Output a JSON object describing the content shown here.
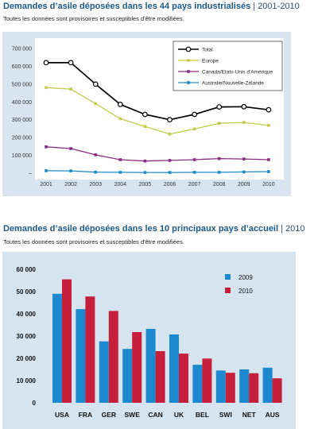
{
  "chart_data": [
    {
      "type": "line",
      "title": "Demandes d’asile déposées dans les 44 pays industrialisés",
      "title_suffix": "| 2001-2010",
      "note": "Toutes les données sont provisoires et susceptibles d'être modifiées.",
      "x": [
        "2001",
        "2002",
        "2003",
        "2004",
        "2005",
        "2006",
        "2007",
        "2008",
        "2009",
        "2010"
      ],
      "series": [
        {
          "name": "Total",
          "color": "#000000",
          "marker": "circle",
          "values": [
            620000,
            620000,
            500000,
            386000,
            330000,
            300000,
            330000,
            372000,
            373000,
            356000
          ]
        },
        {
          "name": "Europe",
          "color": "#c2cc4c",
          "marker": "square",
          "values": [
            480000,
            472000,
            390000,
            306000,
            262000,
            220000,
            248000,
            280000,
            285000,
            268000
          ]
        },
        {
          "name": "Canada/Etats-Unis d'Amérique",
          "color": "#8a2c84",
          "marker": "square",
          "values": [
            148000,
            138000,
            103000,
            76000,
            68000,
            72000,
            76000,
            82000,
            80000,
            76000
          ]
        },
        {
          "name": "Australie/Nouvelle-Zélande",
          "color": "#1d8ac6",
          "marker": "square",
          "values": [
            14000,
            13000,
            6000,
            5000,
            4000,
            4000,
            5000,
            5000,
            7000,
            9000
          ]
        }
      ],
      "yticks": [
        {
          "value": 700000,
          "label": "700 000"
        },
        {
          "value": 600000,
          "label": "600 000"
        },
        {
          "value": 500000,
          "label": "500 000"
        },
        {
          "value": 400000,
          "label": "400 000"
        },
        {
          "value": 300000,
          "label": "300 000"
        },
        {
          "value": 200000,
          "label": "200 000"
        },
        {
          "value": 100000,
          "label": "100 000"
        },
        {
          "value": 0,
          "label": "–"
        }
      ],
      "ylim": [
        0,
        700000
      ],
      "grid": false,
      "legend": "top-right"
    },
    {
      "type": "bar",
      "title": "Demandes d’asile déposées dans les 10 principaux pays d’accueil",
      "title_suffix": "| 2010",
      "note": "Toutes les données sont provisoires et susceptibles d'être modifiées.",
      "categories": [
        "USA",
        "FRA",
        "GER",
        "SWE",
        "CAN",
        "UK",
        "BEL",
        "SWI",
        "NET",
        "AUS"
      ],
      "series": [
        {
          "name": "2009",
          "color": "#1c88cf",
          "values": [
            49000,
            42100,
            27600,
            24200,
            33200,
            30700,
            17100,
            14500,
            15000,
            15800
          ]
        },
        {
          "name": "2010",
          "color": "#c61f3b",
          "values": [
            55500,
            47800,
            41300,
            31800,
            23200,
            22100,
            19900,
            13500,
            13300,
            11000
          ]
        }
      ],
      "yticks": [
        {
          "value": 60000,
          "label": "60 000"
        },
        {
          "value": 50000,
          "label": "50 000"
        },
        {
          "value": 40000,
          "label": "40 000"
        },
        {
          "value": 30000,
          "label": "30 000"
        },
        {
          "value": 20000,
          "label": "20 000"
        },
        {
          "value": 10000,
          "label": "10 000"
        },
        {
          "value": 0,
          "label": "0"
        }
      ],
      "ylim": [
        0,
        60000
      ],
      "grid": false,
      "legend": "top-right"
    }
  ]
}
